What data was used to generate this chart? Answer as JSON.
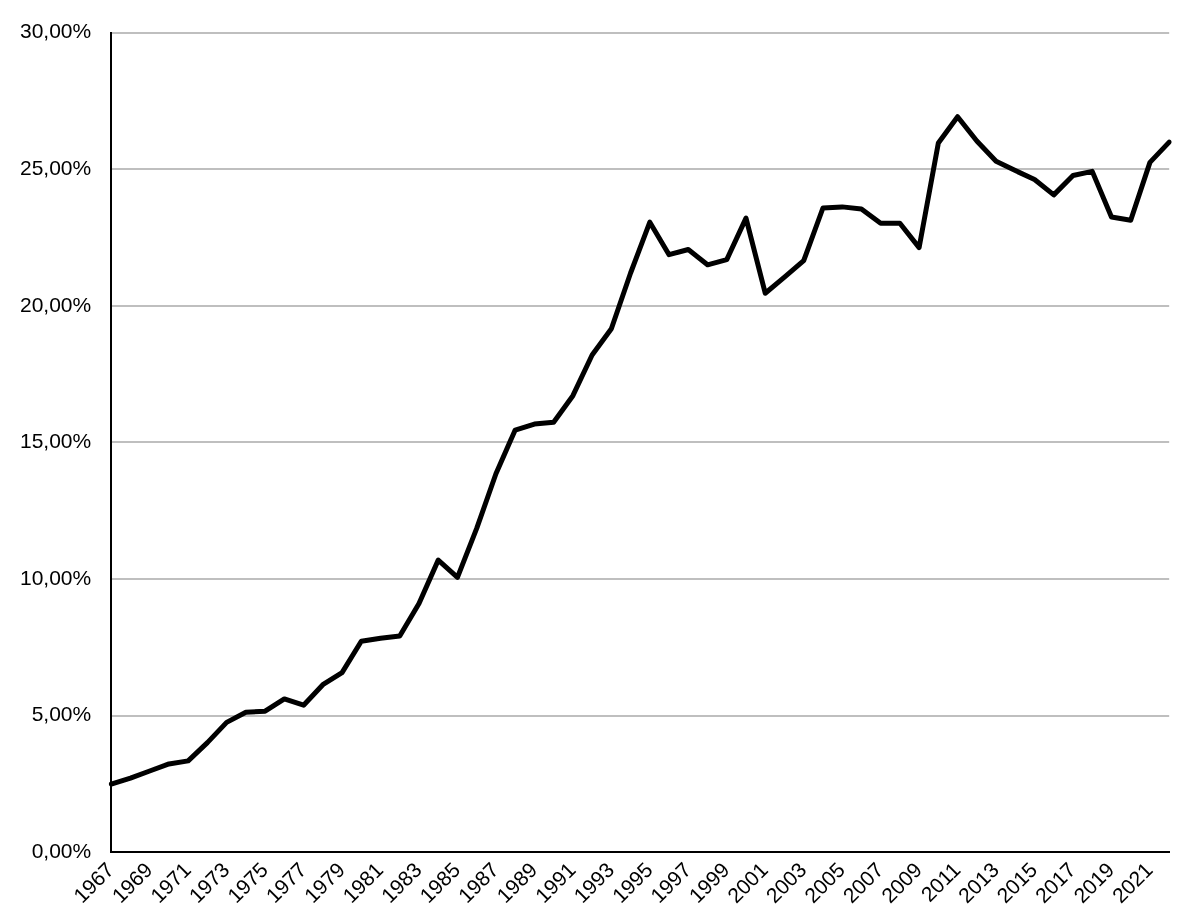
{
  "chart_data": {
    "type": "line",
    "categories": [
      "1967",
      null,
      "1969",
      null,
      "1971",
      null,
      "1973",
      null,
      "1975",
      null,
      "1977",
      null,
      "1979",
      null,
      "1981",
      null,
      "1983",
      null,
      "1985",
      null,
      "1987",
      null,
      "1989",
      null,
      "1991",
      null,
      "1993",
      null,
      "1995",
      null,
      "1997",
      null,
      "1999",
      null,
      "2001",
      null,
      "2003",
      null,
      "2005",
      null,
      "2007",
      null,
      "2009",
      null,
      "2011",
      null,
      "2013",
      null,
      "2015",
      null,
      "2017",
      null,
      "2019",
      null,
      "2021",
      null
    ],
    "series": [
      {
        "color": "#000000",
        "values": [
          2.49,
          2.71,
          2.97,
          3.23,
          3.34,
          4.01,
          4.75,
          5.12,
          5.16,
          5.61,
          5.38,
          6.13,
          6.57,
          7.72,
          7.83,
          7.91,
          9.1,
          10.69,
          10.06,
          11.85,
          13.85,
          15.45,
          15.67,
          15.74,
          16.71,
          18.2,
          19.16,
          21.2,
          23.06,
          21.87,
          22.06,
          21.5,
          21.69,
          23.21,
          20.46,
          21.05,
          21.65,
          23.58,
          23.62,
          23.54,
          23.02,
          23.02,
          22.13,
          25.96,
          26.92,
          26.03,
          25.29,
          24.95,
          24.62,
          24.06,
          24.77,
          24.92,
          23.25,
          23.13,
          25.25,
          25.99
        ]
      }
    ],
    "ylim": [
      0,
      30
    ],
    "yticks": [
      {
        "value": 0,
        "label": "0,00%"
      },
      {
        "value": 5,
        "label": "5,00%"
      },
      {
        "value": 10,
        "label": "10,00%"
      },
      {
        "value": 15,
        "label": "15,00%"
      },
      {
        "value": 20,
        "label": "20,00%"
      },
      {
        "value": 25,
        "label": "25,00%"
      },
      {
        "value": 30,
        "label": "30,00%"
      }
    ],
    "grid": "y",
    "legend": false,
    "marker": "none",
    "line_style": "solid"
  }
}
